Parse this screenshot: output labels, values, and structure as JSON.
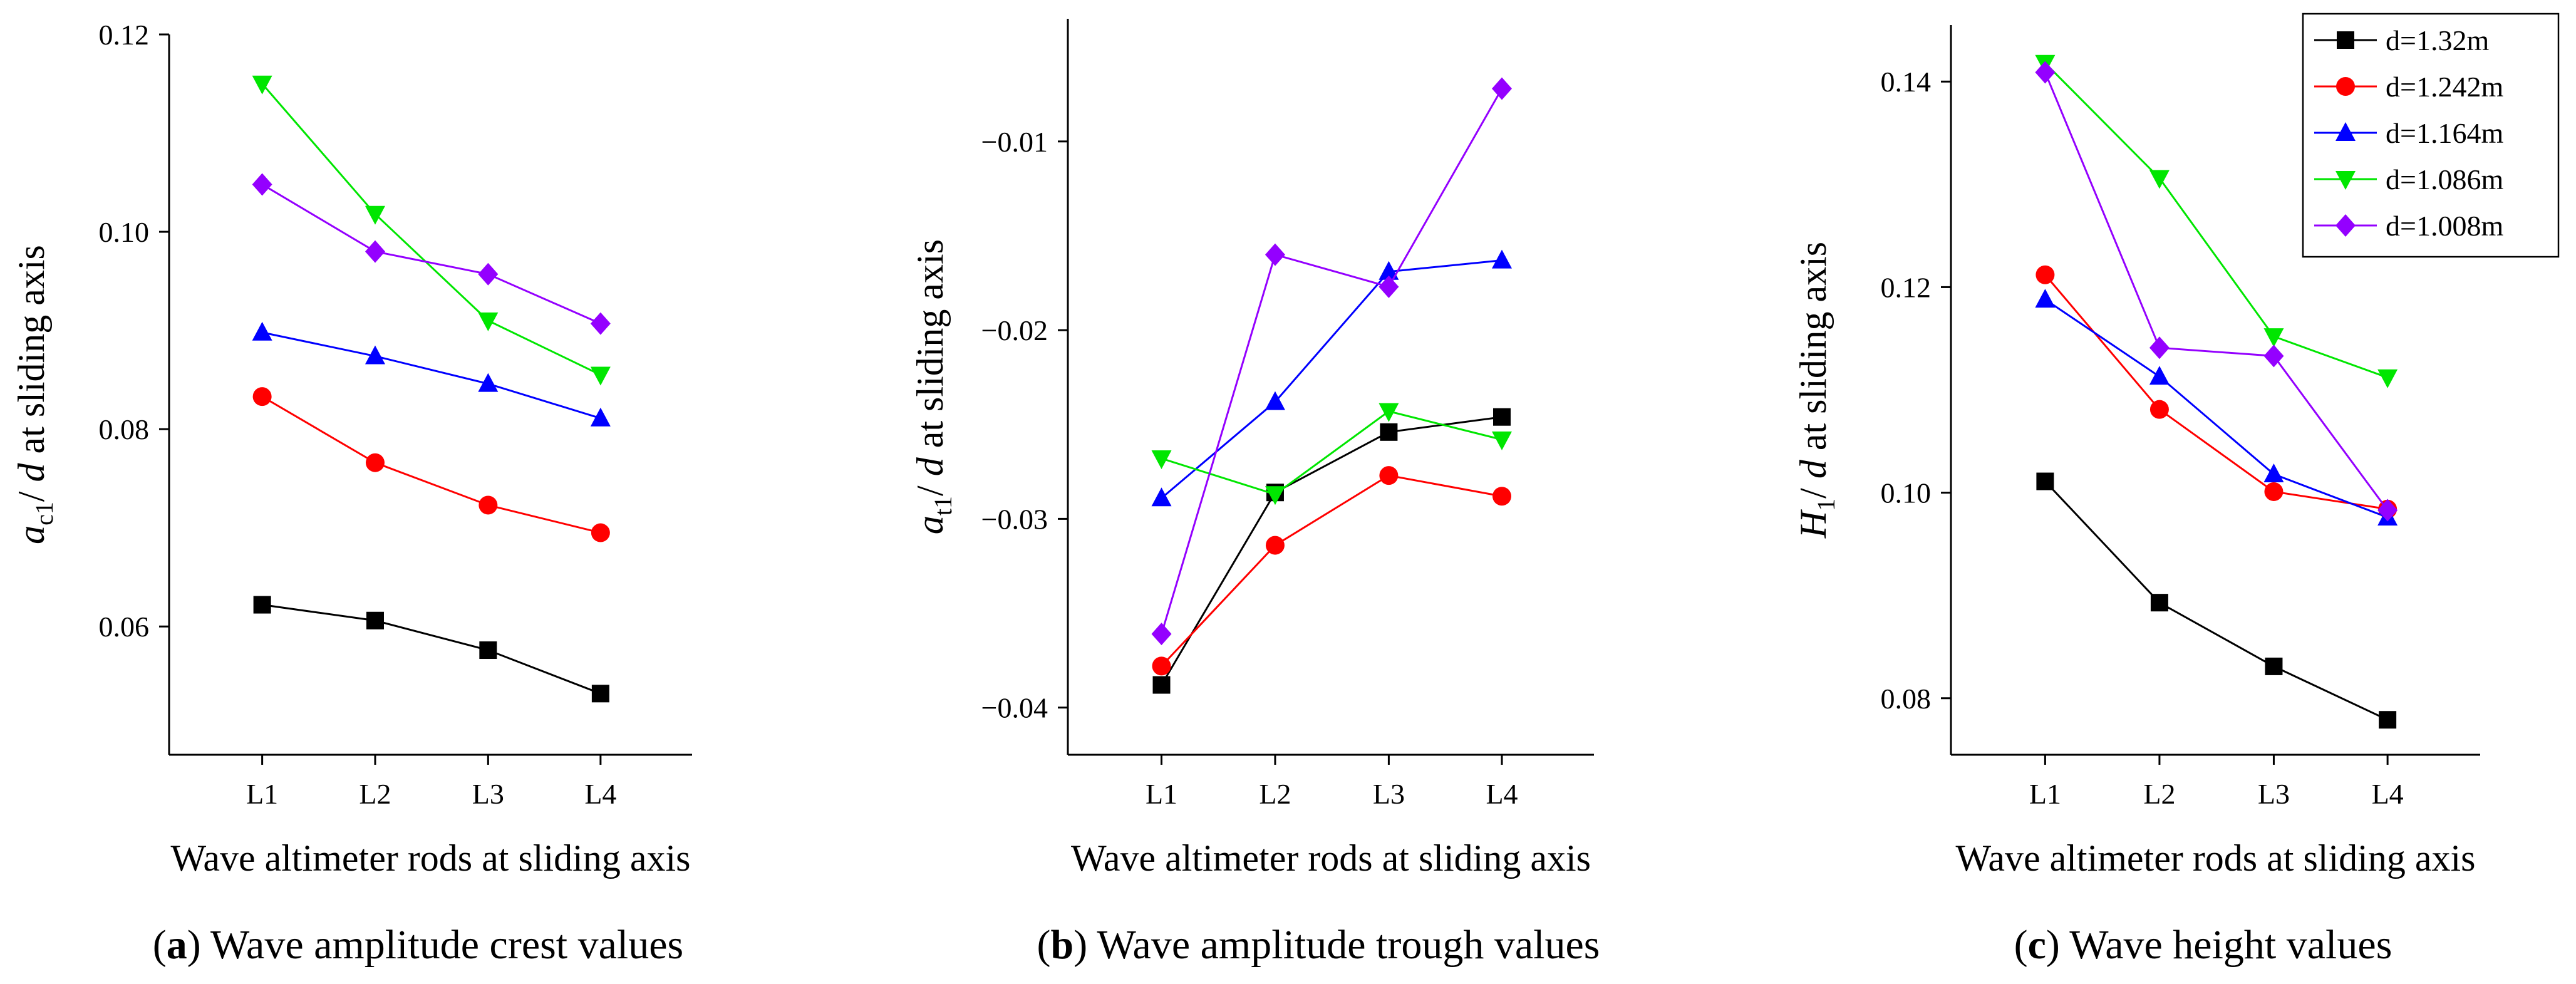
{
  "chart_data": [
    {
      "type": "line",
      "panel": "a",
      "categories": [
        "L1",
        "L2",
        "L3",
        "L4"
      ],
      "xlabel": "Wave altimeter rods at sliding axis",
      "ylabel_main": "a",
      "ylabel_sub": "c1",
      "ylabel_rest": "/ d at sliding axis",
      "ylim": [
        0.047,
        0.12
      ],
      "yticks": [
        0.06,
        0.08,
        0.1,
        0.12
      ],
      "ytick_labels": [
        "0.06",
        "0.08",
        "0.10",
        "0.12"
      ],
      "caption_letter": "a",
      "caption_text": " Wave amplitude crest values",
      "series": [
        {
          "name": "d=1.32m",
          "values": [
            0.0622,
            0.0606,
            0.0576,
            0.0532
          ]
        },
        {
          "name": "d=1.242m",
          "values": [
            0.0833,
            0.0766,
            0.0723,
            0.0695
          ]
        },
        {
          "name": "d=1.164m",
          "values": [
            0.0898,
            0.0874,
            0.0846,
            0.0811
          ]
        },
        {
          "name": "d=1.086m",
          "values": [
            0.115,
            0.1018,
            0.091,
            0.0855
          ]
        },
        {
          "name": "d=1.008m",
          "values": [
            0.1048,
            0.098,
            0.0957,
            0.0907
          ]
        }
      ]
    },
    {
      "type": "line",
      "panel": "b",
      "categories": [
        "L1",
        "L2",
        "L3",
        "L4"
      ],
      "xlabel": "Wave altimeter rods at sliding axis",
      "ylabel_main": "a",
      "ylabel_sub": "t1",
      "ylabel_rest": "/ d at sliding axis",
      "ylim": [
        -0.0425,
        -0.0035
      ],
      "yticks": [
        -0.04,
        -0.03,
        -0.02,
        -0.01
      ],
      "ytick_labels": [
        "-0.04",
        "-0.03",
        "-0.02",
        "-0.01"
      ],
      "caption_letter": "b",
      "caption_text": " Wave amplitude trough values",
      "series": [
        {
          "name": "d=1.32m",
          "values": [
            -0.0388,
            -0.0286,
            -0.0254,
            -0.0246
          ]
        },
        {
          "name": "d=1.242m",
          "values": [
            -0.0378,
            -0.0314,
            -0.0277,
            -0.0288
          ]
        },
        {
          "name": "d=1.164m",
          "values": [
            -0.0289,
            -0.0238,
            -0.0169,
            -0.0163
          ]
        },
        {
          "name": "d=1.086m",
          "values": [
            -0.0268,
            -0.0287,
            -0.0243,
            -0.0258
          ]
        },
        {
          "name": "d=1.008m",
          "values": [
            -0.0361,
            -0.016,
            -0.0177,
            -0.0072
          ]
        }
      ]
    },
    {
      "type": "line",
      "panel": "c",
      "categories": [
        "L1",
        "L2",
        "L3",
        "L4"
      ],
      "xlabel": "Wave altimeter rods at sliding axis",
      "ylabel_main": "H",
      "ylabel_sub": "1",
      "ylabel_rest": "/ d at sliding axis",
      "ylim": [
        0.0745,
        0.1455
      ],
      "yticks": [
        0.08,
        0.1,
        0.12,
        0.14
      ],
      "ytick_labels": [
        "0.08",
        "0.10",
        "0.12",
        "0.14"
      ],
      "caption_letter": "c",
      "caption_text": " Wave height values",
      "legend": true,
      "series": [
        {
          "name": "d=1.32m",
          "values": [
            0.1011,
            0.0893,
            0.0831,
            0.0779
          ]
        },
        {
          "name": "d=1.242m",
          "values": [
            0.1212,
            0.1081,
            0.1001,
            0.0984
          ]
        },
        {
          "name": "d=1.164m",
          "values": [
            0.1188,
            0.1113,
            0.1018,
            0.0976
          ]
        },
        {
          "name": "d=1.086m",
          "values": [
            0.1418,
            0.1306,
            0.1152,
            0.1112
          ]
        },
        {
          "name": "d=1.008m",
          "values": [
            0.1409,
            0.1141,
            0.1133,
            0.0983
          ]
        }
      ]
    }
  ],
  "series_styles": [
    {
      "color": "#000000",
      "marker": "square"
    },
    {
      "color": "#ff0000",
      "marker": "circle"
    },
    {
      "color": "#0000ff",
      "marker": "triangle-up"
    },
    {
      "color": "#00e600",
      "marker": "triangle-down"
    },
    {
      "color": "#9400ff",
      "marker": "diamond"
    }
  ]
}
